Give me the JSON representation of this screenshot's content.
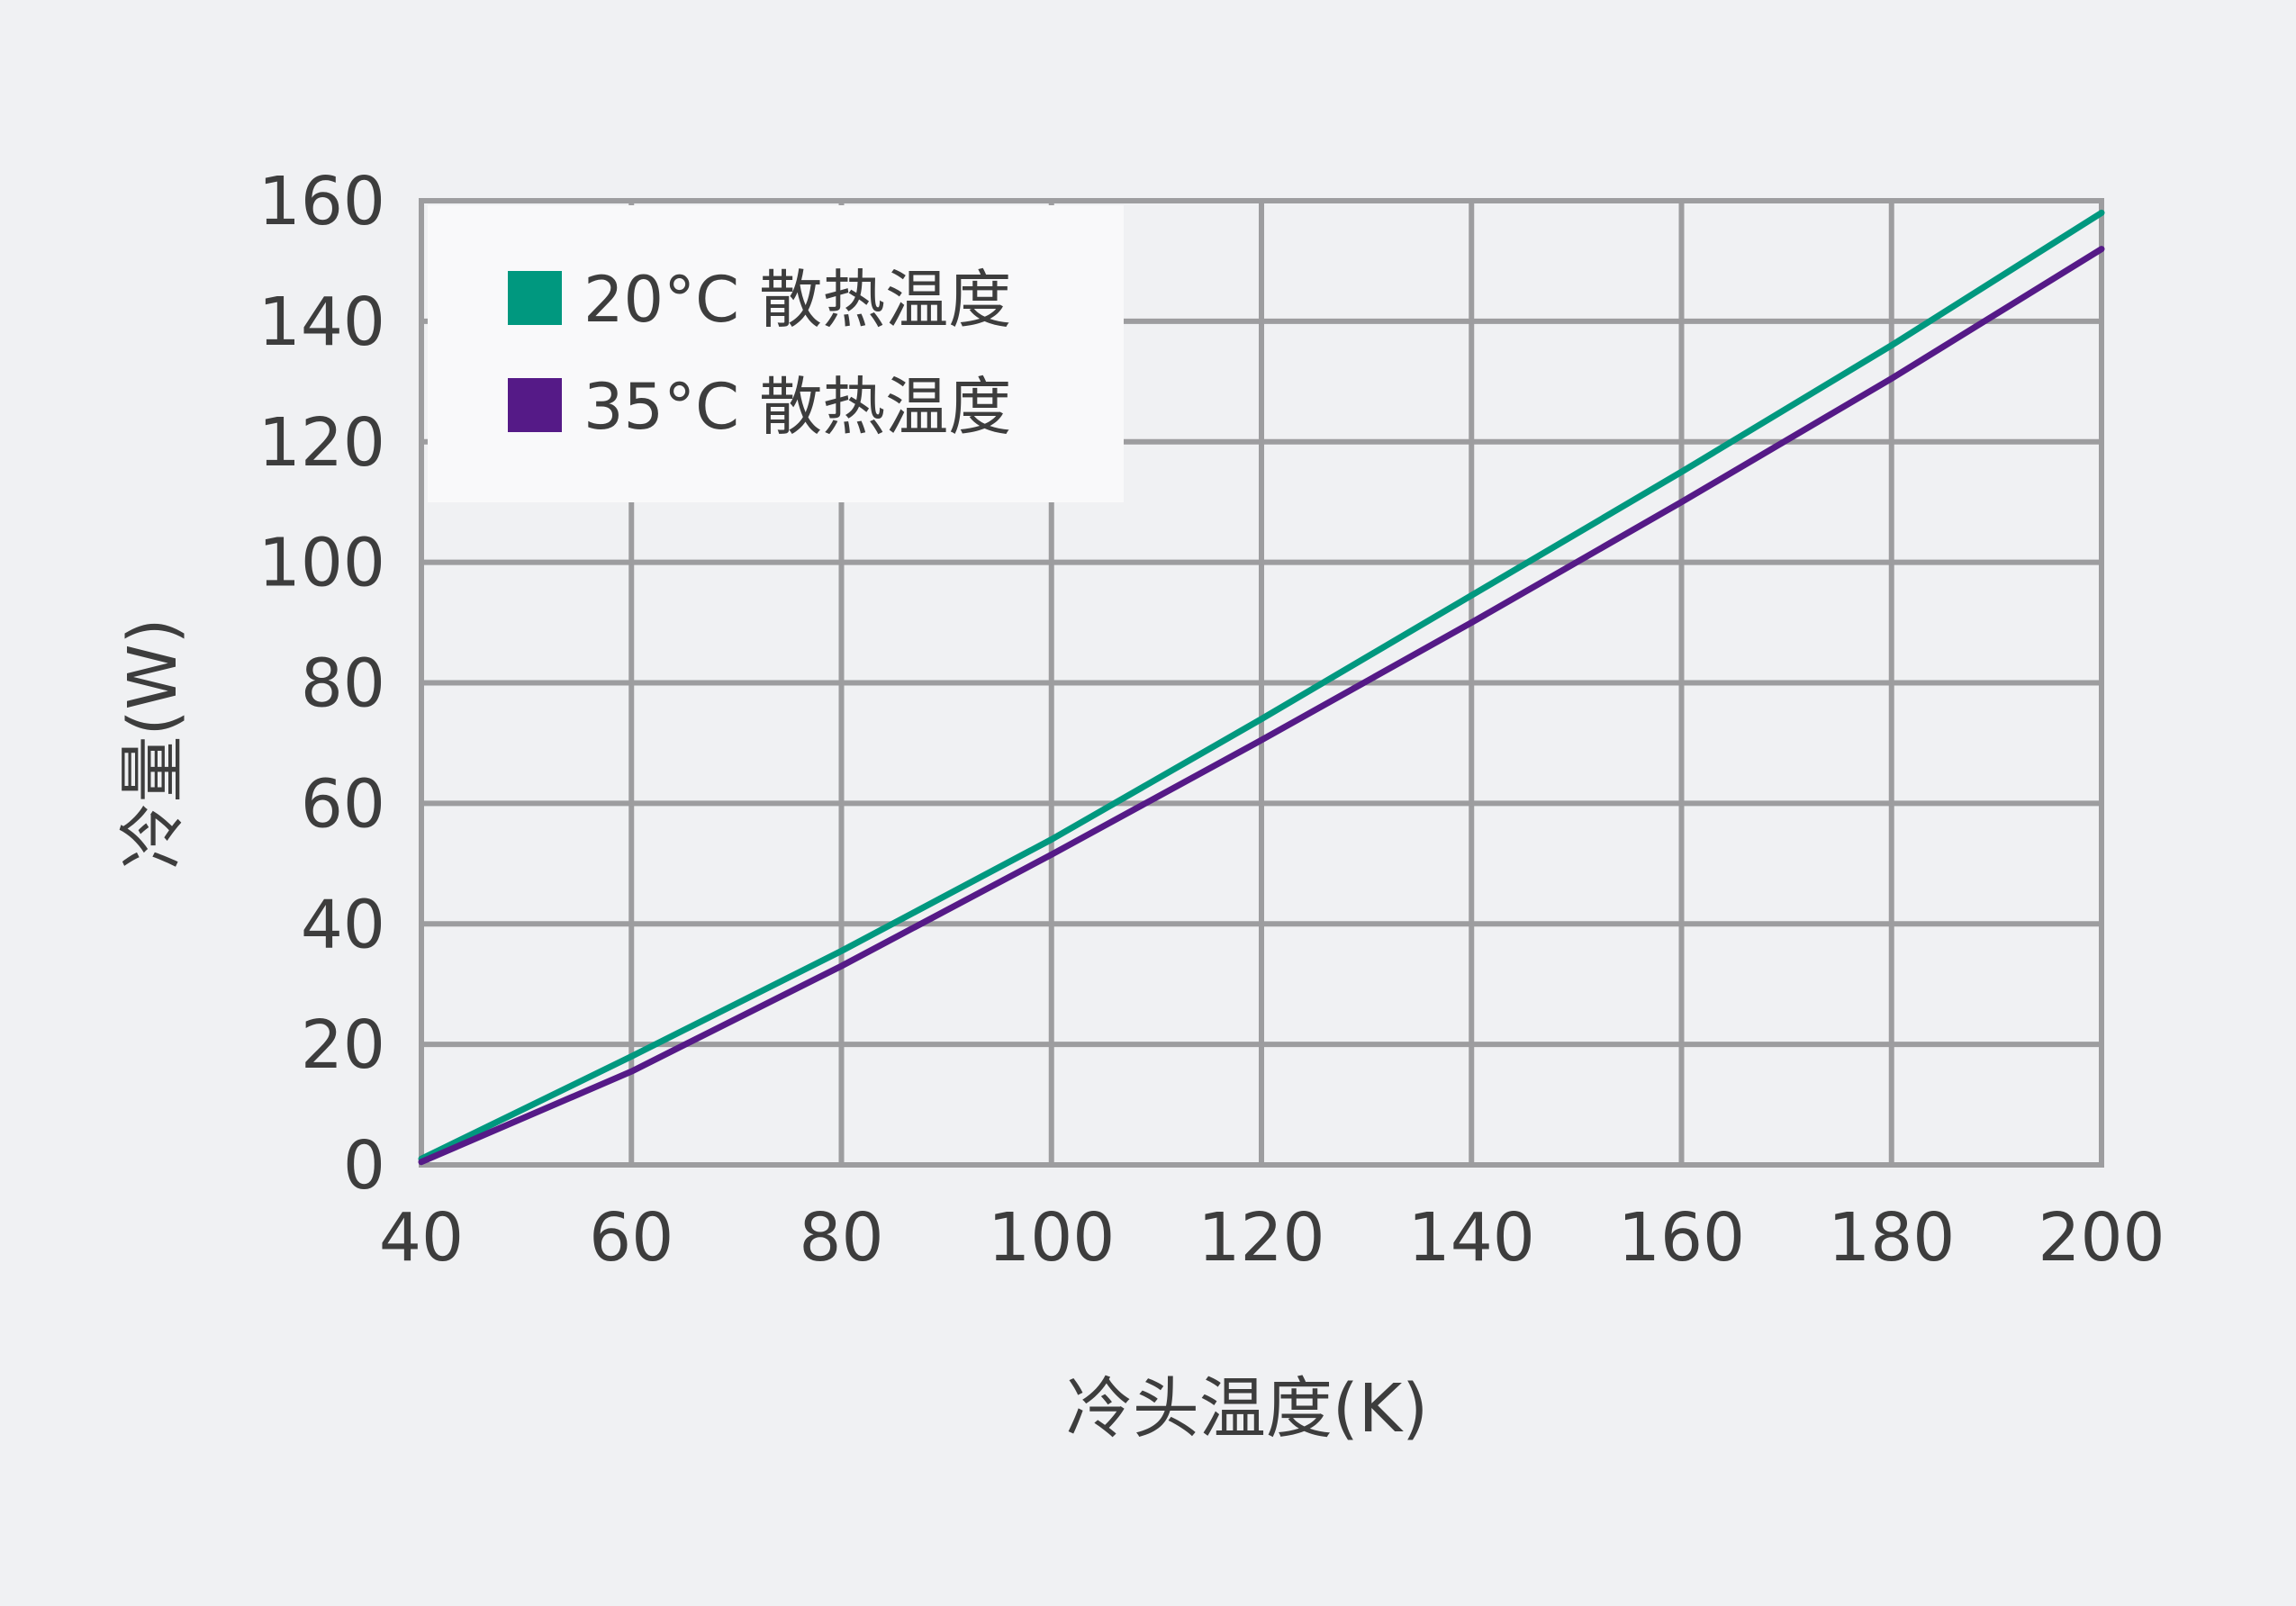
{
  "chart_data": {
    "type": "line",
    "xlabel": "冷头温度(K)",
    "ylabel": "冷量(W)",
    "xlim": [
      40,
      200
    ],
    "ylim": [
      0,
      160
    ],
    "xticks": [
      40,
      60,
      80,
      100,
      120,
      140,
      160,
      180,
      200
    ],
    "yticks": [
      0,
      20,
      40,
      60,
      80,
      100,
      120,
      140,
      160
    ],
    "grid": true,
    "legend_position": "top-left",
    "series": [
      {
        "name": "20°C 散热温度",
        "color": "#00987f",
        "x": [
          40,
          60,
          80,
          100,
          120,
          140,
          160,
          180,
          200
        ],
        "y": [
          1,
          18,
          35.5,
          54,
          74,
          94.5,
          115,
          136,
          158
        ]
      },
      {
        "name": "35°C 散热温度",
        "color": "#551a87",
        "x": [
          40,
          60,
          80,
          100,
          120,
          140,
          160,
          180,
          200
        ],
        "y": [
          0.5,
          15.5,
          33,
          51.5,
          70.5,
          90,
          110,
          130.5,
          152
        ]
      }
    ]
  }
}
